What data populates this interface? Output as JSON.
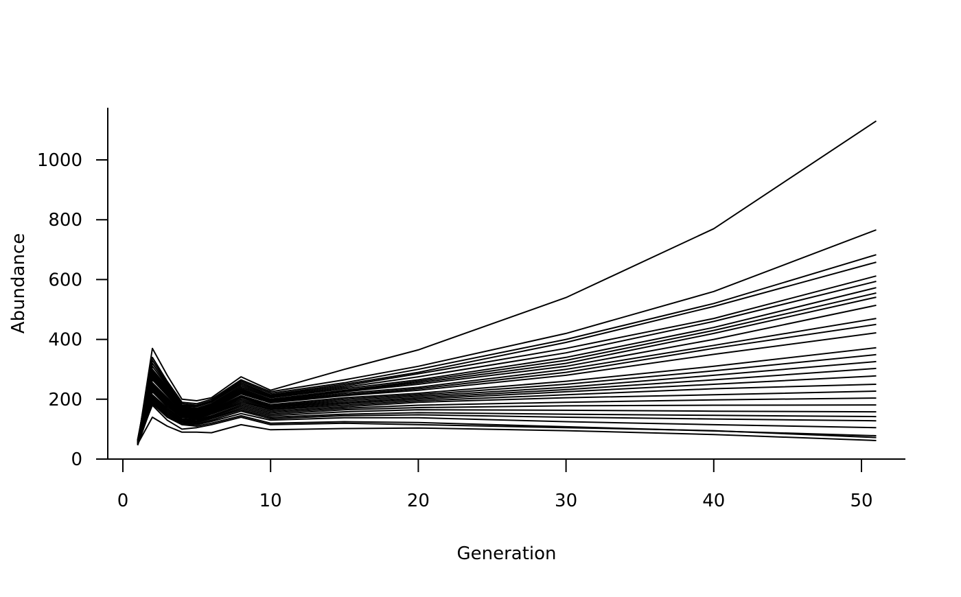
{
  "chart_data": {
    "type": "line",
    "title": "",
    "xlabel": "Generation",
    "ylabel": "Abundance",
    "xlim": [
      -1,
      53
    ],
    "ylim": [
      0,
      1175
    ],
    "xticks": [
      0,
      10,
      20,
      30,
      40,
      50
    ],
    "yticks": [
      0,
      200,
      400,
      600,
      800,
      1000
    ],
    "grid": false,
    "legend": "none",
    "line_color": "#000000",
    "x": [
      1,
      2,
      3,
      4,
      5,
      6,
      8,
      10,
      15,
      20,
      30,
      40,
      51
    ],
    "series": [
      {
        "values": [
          50,
          370,
          280,
          200,
          195,
          205,
          275,
          230,
          300,
          365,
          540,
          770,
          1130
        ]
      },
      {
        "values": [
          60,
          340,
          260,
          190,
          185,
          200,
          265,
          225,
          265,
          310,
          420,
          560,
          766
        ]
      },
      {
        "values": [
          55,
          330,
          255,
          185,
          180,
          195,
          260,
          220,
          255,
          300,
          400,
          520,
          683
        ]
      },
      {
        "values": [
          65,
          320,
          250,
          180,
          178,
          192,
          255,
          215,
          250,
          290,
          390,
          510,
          658
        ]
      },
      {
        "values": [
          58,
          310,
          245,
          178,
          175,
          190,
          250,
          212,
          245,
          285,
          370,
          470,
          612
        ]
      },
      {
        "values": [
          52,
          300,
          240,
          175,
          170,
          185,
          245,
          208,
          240,
          275,
          355,
          460,
          594
        ]
      },
      {
        "values": [
          62,
          295,
          235,
          172,
          168,
          182,
          240,
          205,
          235,
          265,
          340,
          440,
          573
        ]
      },
      {
        "values": [
          48,
          290,
          230,
          170,
          165,
          180,
          235,
          200,
          230,
          260,
          330,
          430,
          555
        ]
      },
      {
        "values": [
          57,
          285,
          228,
          168,
          163,
          178,
          232,
          198,
          228,
          255,
          320,
          420,
          541
        ]
      },
      {
        "values": [
          63,
          280,
          225,
          165,
          160,
          175,
          228,
          195,
          225,
          250,
          310,
          400,
          514
        ]
      },
      {
        "values": [
          54,
          275,
          220,
          162,
          158,
          172,
          225,
          192,
          220,
          240,
          300,
          380,
          470
        ]
      },
      {
        "values": [
          60,
          270,
          215,
          160,
          155,
          170,
          222,
          190,
          215,
          235,
          290,
          370,
          450
        ]
      },
      {
        "values": [
          50,
          265,
          212,
          158,
          152,
          168,
          218,
          188,
          212,
          230,
          280,
          350,
          422
        ]
      },
      {
        "values": [
          56,
          255,
          205,
          155,
          150,
          165,
          212,
          182,
          205,
          220,
          260,
          310,
          372
        ]
      },
      {
        "values": [
          61,
          250,
          200,
          152,
          148,
          162,
          208,
          178,
          200,
          215,
          250,
          295,
          349
        ]
      },
      {
        "values": [
          53,
          245,
          195,
          150,
          145,
          160,
          205,
          175,
          195,
          210,
          240,
          280,
          326
        ]
      },
      {
        "values": [
          59,
          240,
          190,
          148,
          142,
          158,
          200,
          172,
          190,
          205,
          232,
          265,
          303
        ]
      },
      {
        "values": [
          47,
          235,
          185,
          145,
          140,
          155,
          195,
          168,
          185,
          200,
          225,
          250,
          278
        ]
      },
      {
        "values": [
          64,
          230,
          180,
          142,
          138,
          152,
          190,
          165,
          180,
          195,
          215,
          235,
          250
        ]
      },
      {
        "values": [
          55,
          225,
          175,
          140,
          135,
          150,
          185,
          160,
          175,
          190,
          205,
          215,
          227
        ]
      },
      {
        "values": [
          51,
          215,
          170,
          135,
          132,
          145,
          180,
          155,
          170,
          180,
          190,
          198,
          204
        ]
      },
      {
        "values": [
          62,
          210,
          165,
          132,
          128,
          142,
          175,
          150,
          165,
          172,
          178,
          180,
          181
        ]
      },
      {
        "values": [
          49,
          205,
          160,
          128,
          125,
          138,
          170,
          145,
          158,
          165,
          163,
          160,
          158
        ]
      },
      {
        "values": [
          58,
          200,
          155,
          125,
          122,
          135,
          165,
          140,
          150,
          155,
          150,
          146,
          142
        ]
      },
      {
        "values": [
          53,
          195,
          150,
          122,
          118,
          130,
          160,
          135,
          145,
          148,
          140,
          134,
          128
        ]
      },
      {
        "values": [
          60,
          190,
          145,
          118,
          115,
          126,
          152,
          130,
          138,
          138,
          125,
          115,
          105
        ]
      },
      {
        "values": [
          46,
          185,
          140,
          115,
          110,
          120,
          145,
          120,
          125,
          122,
          108,
          94,
          78
        ]
      },
      {
        "values": [
          57,
          180,
          130,
          100,
          105,
          115,
          140,
          115,
          120,
          115,
          105,
          95,
          72
        ]
      },
      {
        "values": [
          50,
          140,
          110,
          90,
          90,
          88,
          115,
          98,
          102,
          104,
          95,
          82,
          62
        ]
      }
    ]
  }
}
